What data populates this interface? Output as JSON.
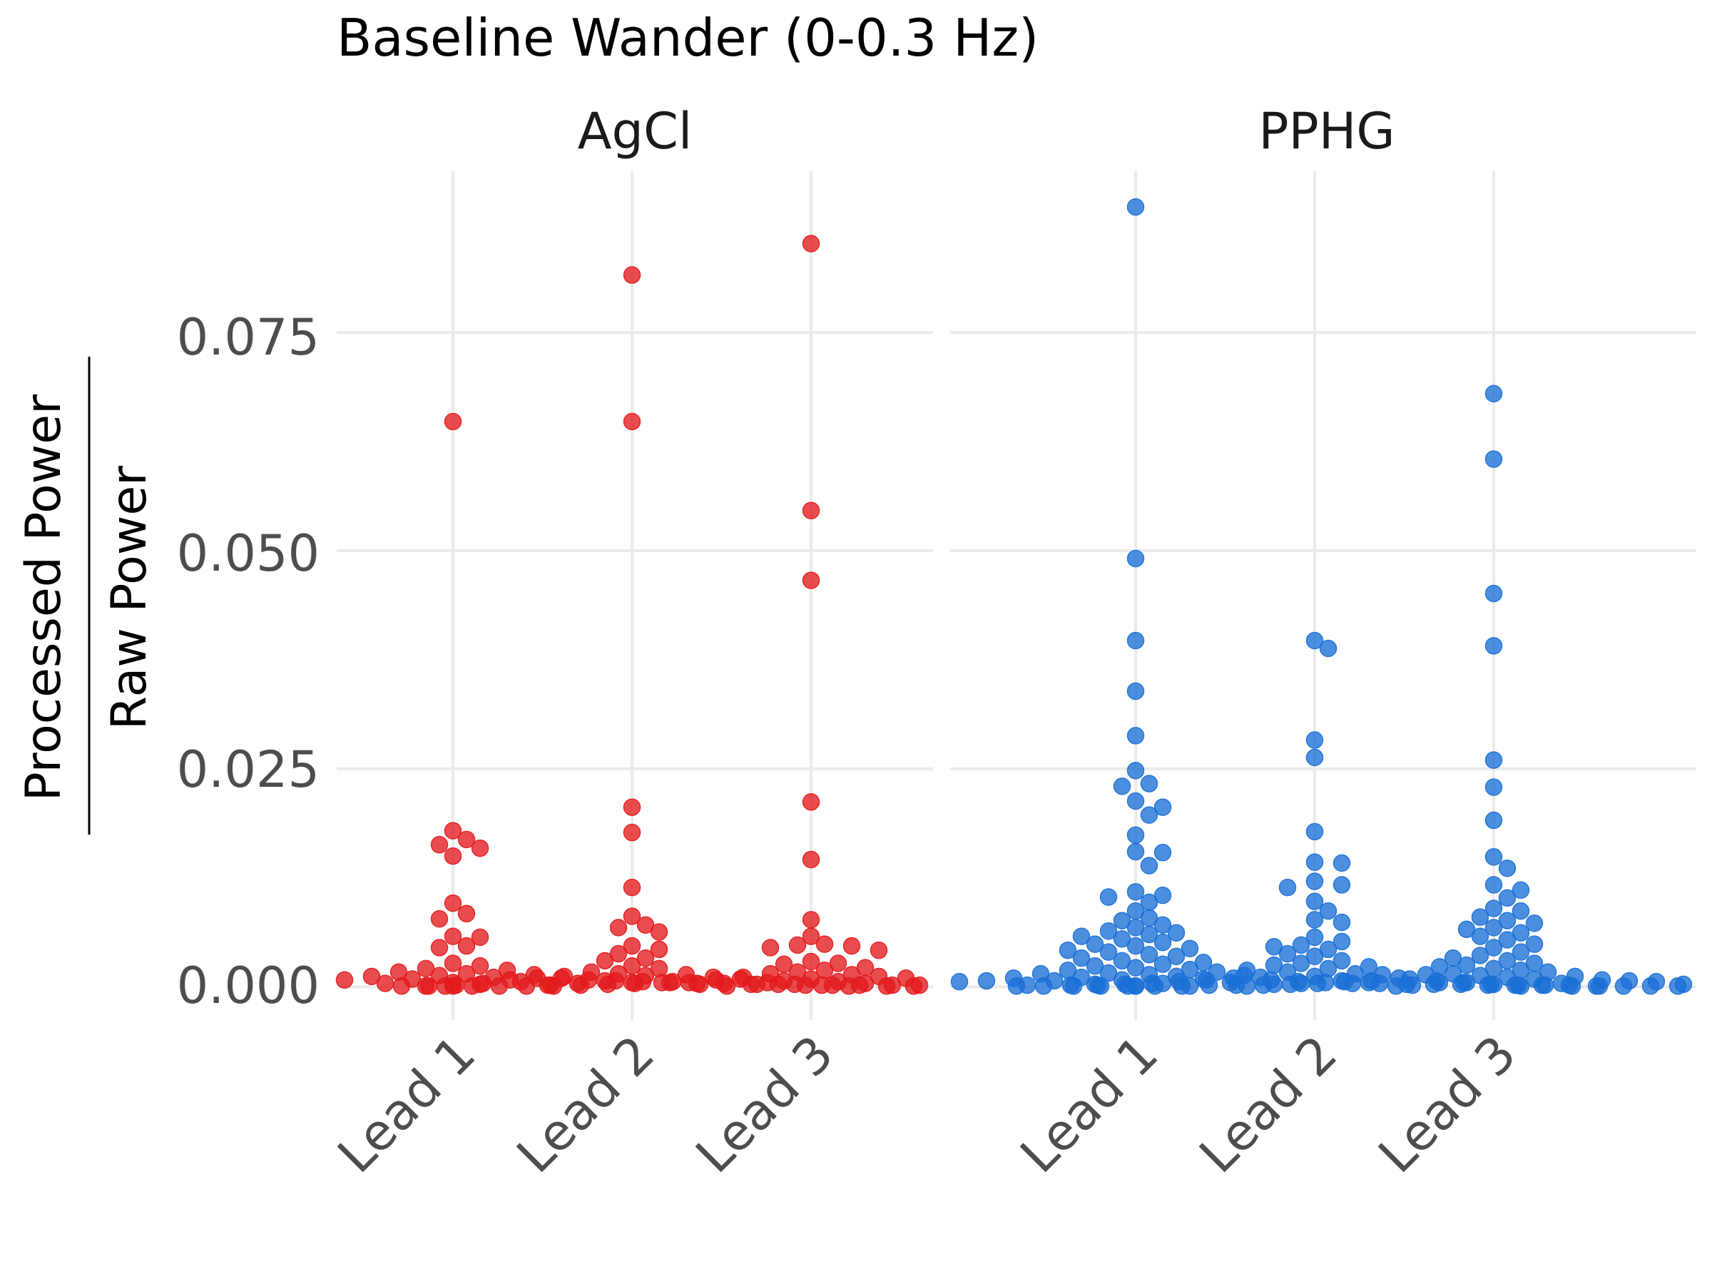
{
  "title": "Baseline Wander (0-0.3 Hz)",
  "y_axis": {
    "numerator": "Processed Power",
    "denominator": "Raw Power",
    "ticks": [
      "0.000",
      "0.025",
      "0.050",
      "0.075"
    ],
    "tick_values": [
      0,
      0.025,
      0.05,
      0.075
    ],
    "range": [
      -0.0038,
      0.0935
    ]
  },
  "x_axis": {
    "ticks": [
      "Lead 1",
      "Lead 2",
      "Lead 3"
    ]
  },
  "panels": [
    {
      "label": "AgCl",
      "color": "#e31a1c"
    },
    {
      "label": "PPHG",
      "color": "#1a6fd6"
    }
  ],
  "chart_data": {
    "type": "scatter",
    "subtype": "beeswarm",
    "title": "Baseline Wander (0-0.3 Hz)",
    "xlabel": "",
    "ylabel": "Processed Power / Raw Power",
    "ylim": [
      -0.0038,
      0.0935
    ],
    "grid": true,
    "legend": "none",
    "categories": [
      "Lead 1",
      "Lead 2",
      "Lead 3"
    ],
    "facets": [
      {
        "name": "AgCl",
        "series": [
          {
            "category": "Lead 1",
            "values": [
              0.0648,
              0.0179,
              0.0169,
              0.0163,
              0.0159,
              0.015,
              0.0096,
              0.0084,
              0.0078,
              0.0058,
              0.0057,
              0.0047,
              0.0045,
              0.0027,
              0.0024,
              0.0021,
              0.0019,
              0.0017,
              0.0015,
              0.0014,
              0.0013,
              0.0012,
              0.0011,
              0.001,
              0.0009,
              0.0008,
              0.0008,
              0.0007,
              0.0006,
              0.0006,
              0.0005,
              0.0005,
              0.0004,
              0.0004,
              0.0004,
              0.0003,
              0.0003,
              0.0003,
              0.0002,
              0.0002,
              0.0002,
              0.0002,
              0.0001,
              0.0001,
              0.0001,
              0.0001
            ]
          },
          {
            "category": "Lead 2",
            "values": [
              0.0816,
              0.0648,
              0.0206,
              0.0177,
              0.0114,
              0.0081,
              0.0071,
              0.0068,
              0.0063,
              0.0047,
              0.0043,
              0.0038,
              0.0033,
              0.003,
              0.0024,
              0.0021,
              0.0017,
              0.0015,
              0.0014,
              0.0013,
              0.0012,
              0.0011,
              0.001,
              0.0009,
              0.0008,
              0.0007,
              0.0006,
              0.0005,
              0.0005,
              0.0004,
              0.0004,
              0.0003,
              0.0003,
              0.0002,
              0.0002,
              0.0002,
              0.0001,
              0.0001,
              0.0001,
              0.0001
            ]
          },
          {
            "category": "Lead 3",
            "values": [
              0.0852,
              0.0546,
              0.0466,
              0.0212,
              0.0146,
              0.0077,
              0.0058,
              0.0049,
              0.0048,
              0.0047,
              0.0045,
              0.0042,
              0.0029,
              0.0027,
              0.0026,
              0.0022,
              0.0019,
              0.0017,
              0.0015,
              0.0014,
              0.0012,
              0.0011,
              0.001,
              0.0009,
              0.0008,
              0.0007,
              0.0006,
              0.0005,
              0.0005,
              0.0004,
              0.0004,
              0.0003,
              0.0003,
              0.0002,
              0.0002,
              0.0002,
              0.0001,
              0.0001,
              0.0001,
              0.0001,
              0.0001
            ]
          }
        ]
      },
      {
        "name": "PPHG",
        "series": [
          {
            "category": "Lead 1",
            "values": [
              0.0894,
              0.0491,
              0.0397,
              0.0339,
              0.0288,
              0.0248,
              0.0233,
              0.023,
              0.0213,
              0.0206,
              0.0197,
              0.0174,
              0.0155,
              0.0154,
              0.0139,
              0.0109,
              0.0105,
              0.0103,
              0.0097,
              0.0087,
              0.0079,
              0.0076,
              0.0071,
              0.0068,
              0.0064,
              0.0062,
              0.006,
              0.0058,
              0.0055,
              0.0051,
              0.0049,
              0.0047,
              0.0044,
              0.0042,
              0.004,
              0.0037,
              0.0035,
              0.0033,
              0.003,
              0.0028,
              0.0026,
              0.0024,
              0.0022,
              0.002,
              0.0019,
              0.0017,
              0.0016,
              0.0015,
              0.0014,
              0.0013,
              0.0012,
              0.0011,
              0.001,
              0.0009,
              0.0008,
              0.0008,
              0.0007,
              0.0007,
              0.0006,
              0.0006,
              0.0005,
              0.0005,
              0.0004,
              0.0004,
              0.0004,
              0.0003,
              0.0003,
              0.0003,
              0.0003,
              0.0002,
              0.0002,
              0.0002,
              0.0002,
              0.0002,
              0.0001,
              0.0001,
              0.0001,
              0.0001,
              0.0001,
              0.0001,
              0.0001
            ]
          },
          {
            "category": "Lead 2",
            "values": [
              0.0397,
              0.0388,
              0.0283,
              0.0263,
              0.0178,
              0.0143,
              0.0142,
              0.0121,
              0.0117,
              0.0114,
              0.0098,
              0.0087,
              0.0077,
              0.0074,
              0.0057,
              0.0052,
              0.0048,
              0.0046,
              0.0043,
              0.0038,
              0.0035,
              0.003,
              0.0027,
              0.0025,
              0.0023,
              0.0021,
              0.0019,
              0.0017,
              0.0015,
              0.0014,
              0.0012,
              0.0011,
              0.001,
              0.0009,
              0.0008,
              0.0007,
              0.0007,
              0.0006,
              0.0005,
              0.0005,
              0.0004,
              0.0004,
              0.0003,
              0.0003,
              0.0003,
              0.0002,
              0.0002,
              0.0002,
              0.0002,
              0.0001,
              0.0001,
              0.0001,
              0.0001,
              0.0001,
              0.0001
            ]
          },
          {
            "category": "Lead 3",
            "values": [
              0.068,
              0.0605,
              0.0451,
              0.0391,
              0.026,
              0.0229,
              0.0191,
              0.0149,
              0.0136,
              0.0117,
              0.0111,
              0.0102,
              0.009,
              0.0087,
              0.008,
              0.0076,
              0.0073,
              0.0068,
              0.0066,
              0.0062,
              0.0058,
              0.0054,
              0.0049,
              0.0045,
              0.004,
              0.0036,
              0.0033,
              0.003,
              0.0027,
              0.0025,
              0.0023,
              0.0021,
              0.0019,
              0.0017,
              0.0015,
              0.0014,
              0.0013,
              0.0012,
              0.0011,
              0.001,
              0.0009,
              0.0008,
              0.0007,
              0.0007,
              0.0006,
              0.0006,
              0.0005,
              0.0005,
              0.0004,
              0.0004,
              0.0003,
              0.0003,
              0.0003,
              0.0002,
              0.0002,
              0.0002,
              0.0002,
              0.0001,
              0.0001,
              0.0001,
              0.0001,
              0.0001,
              0.0001
            ]
          }
        ]
      }
    ]
  }
}
